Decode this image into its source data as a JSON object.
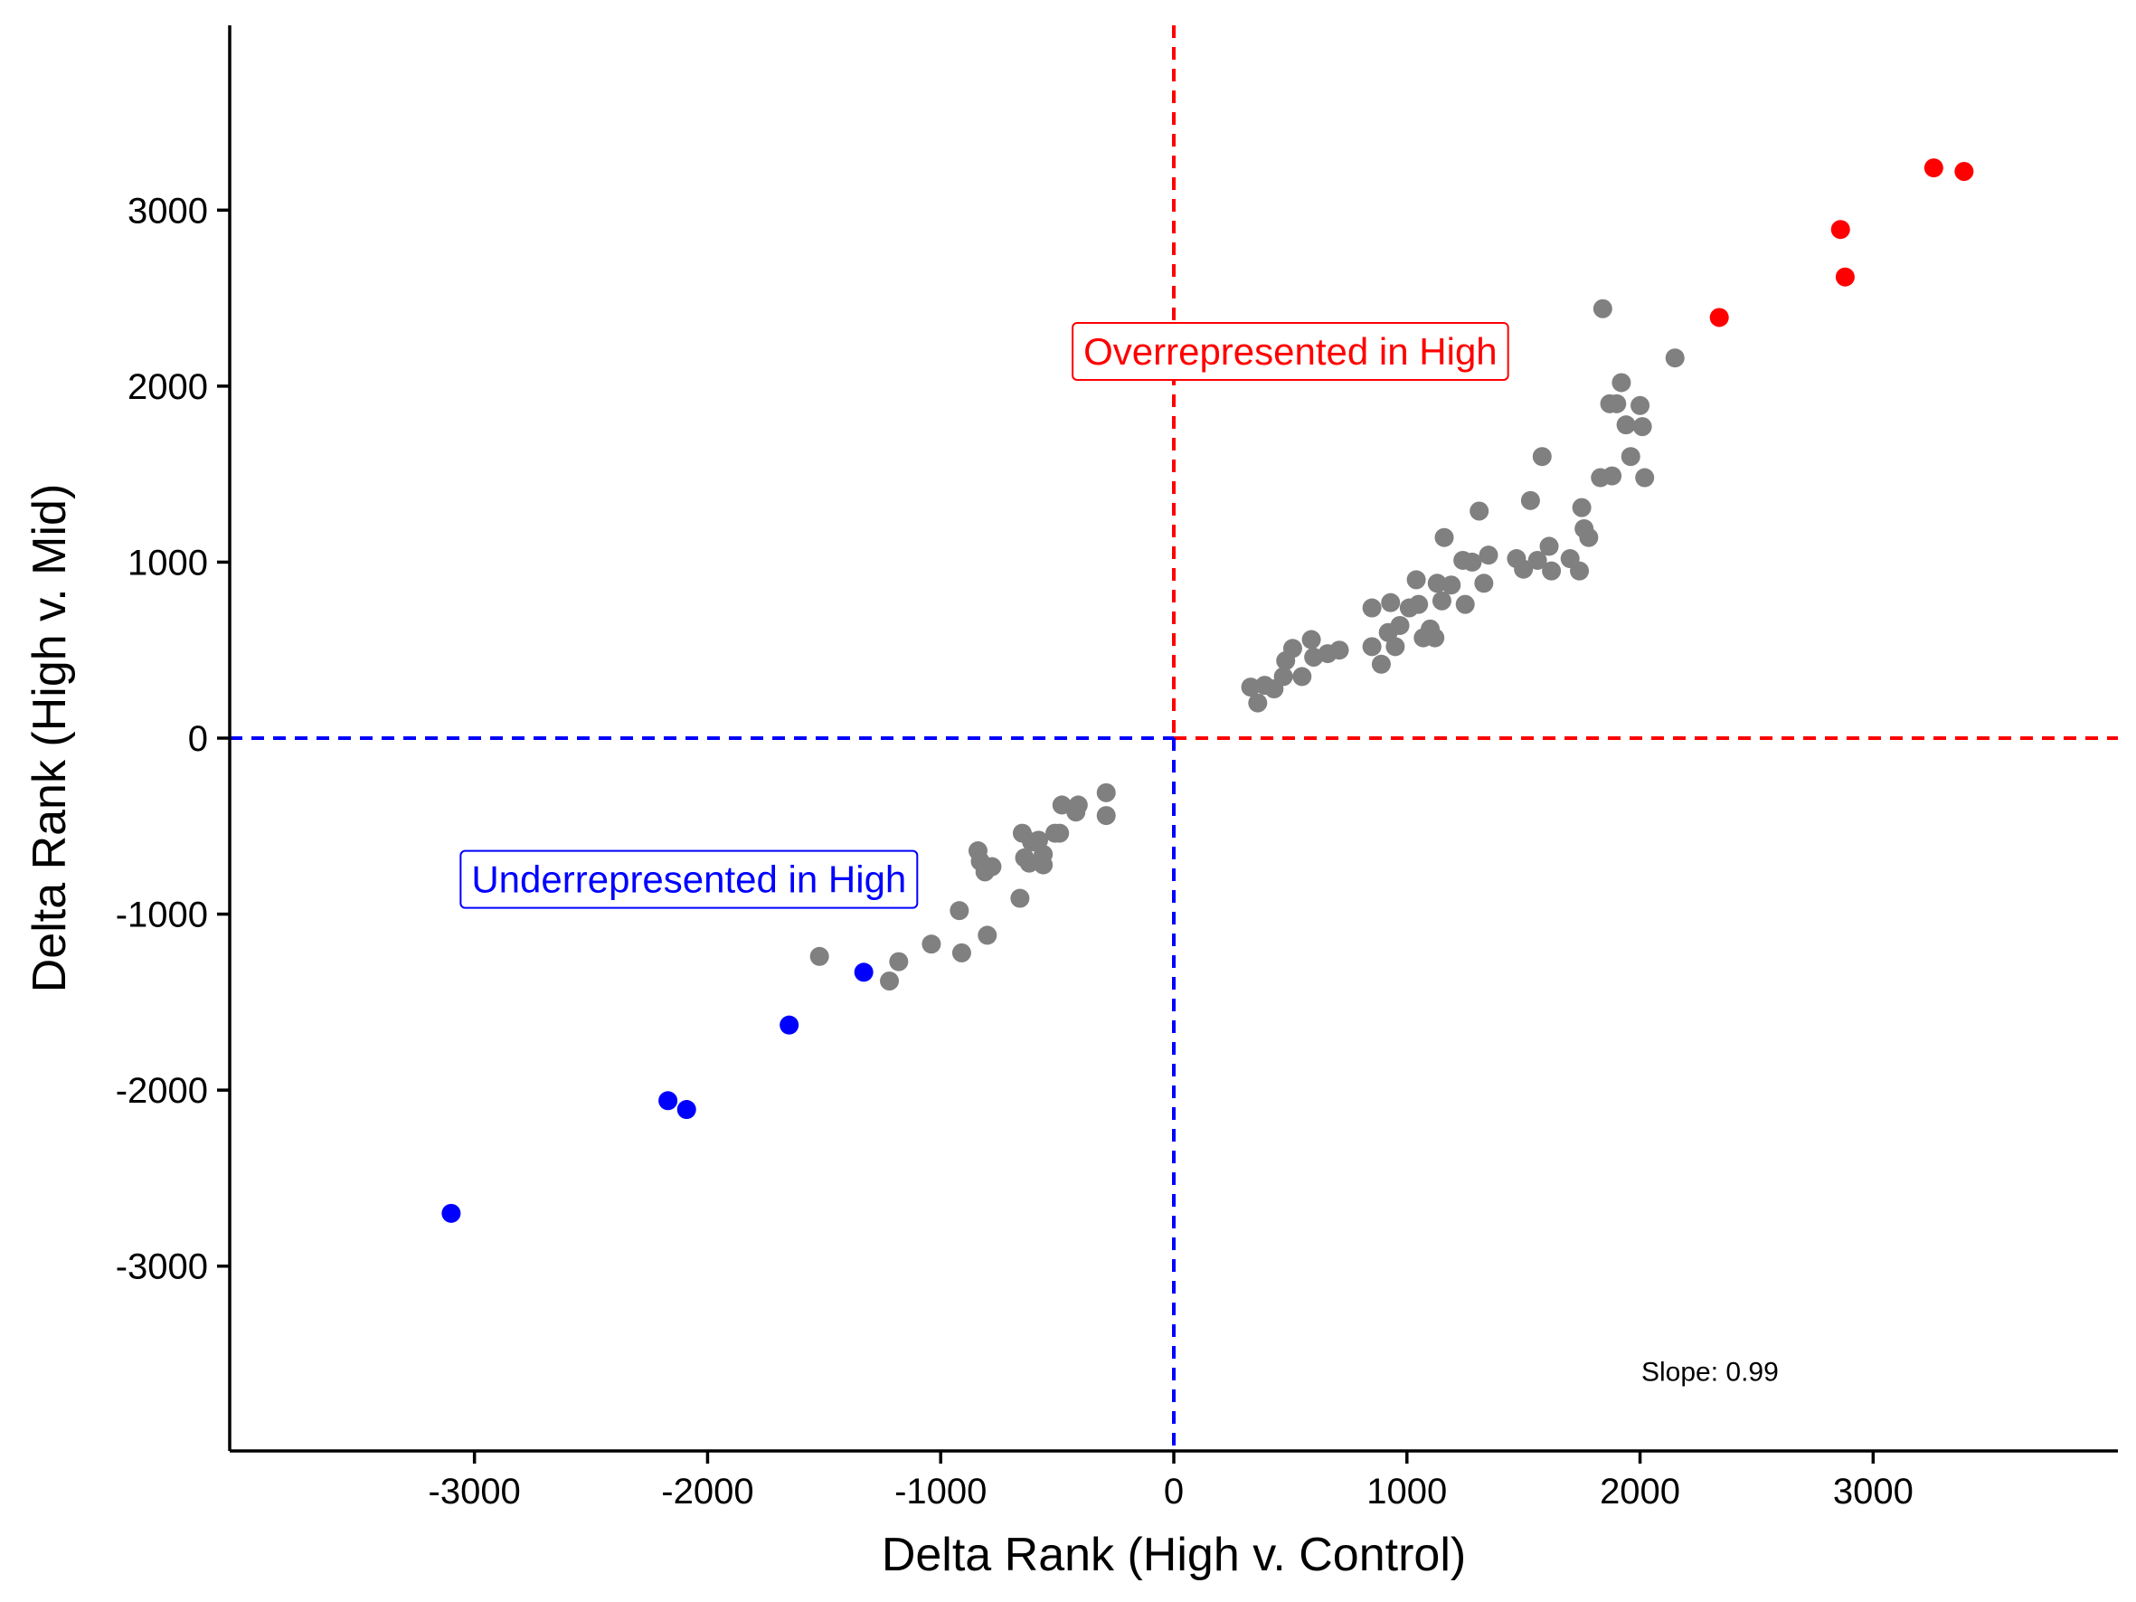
{
  "chart_data": {
    "type": "scatter",
    "xlabel": "Delta Rank (High v. Control)",
    "ylabel": "Delta Rank (High v. Mid)",
    "xlim": [
      -4050,
      4050
    ],
    "ylim": [
      -4050,
      4050
    ],
    "xticks": [
      -3000,
      -2000,
      -1000,
      0,
      1000,
      2000,
      3000
    ],
    "yticks": [
      -3000,
      -2000,
      -1000,
      0,
      1000,
      2000,
      3000
    ],
    "grid": false,
    "colors": {
      "neutral": "#808080",
      "over": "#ff0000",
      "under": "#0000ff"
    },
    "annotations": {
      "over": {
        "text": "Overrepresented in High",
        "x": 500,
        "y": 2200,
        "color": "#ff0000"
      },
      "under": {
        "text": "Underrepresented in High",
        "x": -2080,
        "y": -800,
        "color": "#0000ff"
      },
      "slope": {
        "text": "Slope: 0.99",
        "x": 2300,
        "y": -3600
      }
    },
    "series": [
      {
        "color": "#808080",
        "points": [
          [
            330,
            290
          ],
          [
            360,
            200
          ],
          [
            390,
            300
          ],
          [
            430,
            280
          ],
          [
            470,
            350
          ],
          [
            480,
            440
          ],
          [
            510,
            510
          ],
          [
            550,
            350
          ],
          [
            590,
            560
          ],
          [
            600,
            460
          ],
          [
            660,
            480
          ],
          [
            710,
            500
          ],
          [
            850,
            520
          ],
          [
            850,
            740
          ],
          [
            890,
            420
          ],
          [
            920,
            600
          ],
          [
            930,
            770
          ],
          [
            950,
            520
          ],
          [
            970,
            640
          ],
          [
            1010,
            740
          ],
          [
            1040,
            900
          ],
          [
            1050,
            760
          ],
          [
            1070,
            570
          ],
          [
            1100,
            620
          ],
          [
            1120,
            570
          ],
          [
            1130,
            880
          ],
          [
            1150,
            780
          ],
          [
            1160,
            1140
          ],
          [
            1190,
            870
          ],
          [
            1240,
            1010
          ],
          [
            1250,
            760
          ],
          [
            1280,
            1000
          ],
          [
            1310,
            1290
          ],
          [
            1330,
            880
          ],
          [
            1350,
            1040
          ],
          [
            1470,
            1020
          ],
          [
            1500,
            960
          ],
          [
            1530,
            1350
          ],
          [
            1560,
            1010
          ],
          [
            1580,
            1600
          ],
          [
            1610,
            1090
          ],
          [
            1620,
            950
          ],
          [
            1700,
            1020
          ],
          [
            1740,
            950
          ],
          [
            1750,
            1310
          ],
          [
            1760,
            1190
          ],
          [
            1780,
            1140
          ],
          [
            1830,
            1480
          ],
          [
            1840,
            2440
          ],
          [
            1870,
            1900
          ],
          [
            1880,
            1490
          ],
          [
            1900,
            1900
          ],
          [
            1920,
            2020
          ],
          [
            1940,
            1780
          ],
          [
            1960,
            1600
          ],
          [
            2000,
            1890
          ],
          [
            2010,
            1770
          ],
          [
            2020,
            1480
          ],
          [
            2150,
            2160
          ],
          [
            -290,
            -310
          ],
          [
            -290,
            -440
          ],
          [
            -410,
            -380
          ],
          [
            -420,
            -420
          ],
          [
            -480,
            -380
          ],
          [
            -490,
            -540
          ],
          [
            -510,
            -540
          ],
          [
            -560,
            -660
          ],
          [
            -560,
            -720
          ],
          [
            -580,
            -580
          ],
          [
            -610,
            -590
          ],
          [
            -620,
            -710
          ],
          [
            -640,
            -680
          ],
          [
            -650,
            -540
          ],
          [
            -660,
            -910
          ],
          [
            -780,
            -730
          ],
          [
            -800,
            -1120
          ],
          [
            -810,
            -760
          ],
          [
            -830,
            -700
          ],
          [
            -840,
            -640
          ],
          [
            -910,
            -1220
          ],
          [
            -920,
            -980
          ],
          [
            -1040,
            -1170
          ],
          [
            -1180,
            -1270
          ],
          [
            -1220,
            -1380
          ],
          [
            -1520,
            -1240
          ]
        ]
      },
      {
        "color": "#ff0000",
        "points": [
          [
            2340,
            2390
          ],
          [
            2860,
            2890
          ],
          [
            2880,
            2620
          ],
          [
            3260,
            3240
          ],
          [
            3390,
            3220
          ]
        ]
      },
      {
        "color": "#0000ff",
        "points": [
          [
            -1330,
            -1330
          ],
          [
            -1650,
            -1630
          ],
          [
            -2170,
            -2060
          ],
          [
            -2090,
            -2110
          ],
          [
            -3100,
            -2700
          ]
        ]
      }
    ]
  }
}
